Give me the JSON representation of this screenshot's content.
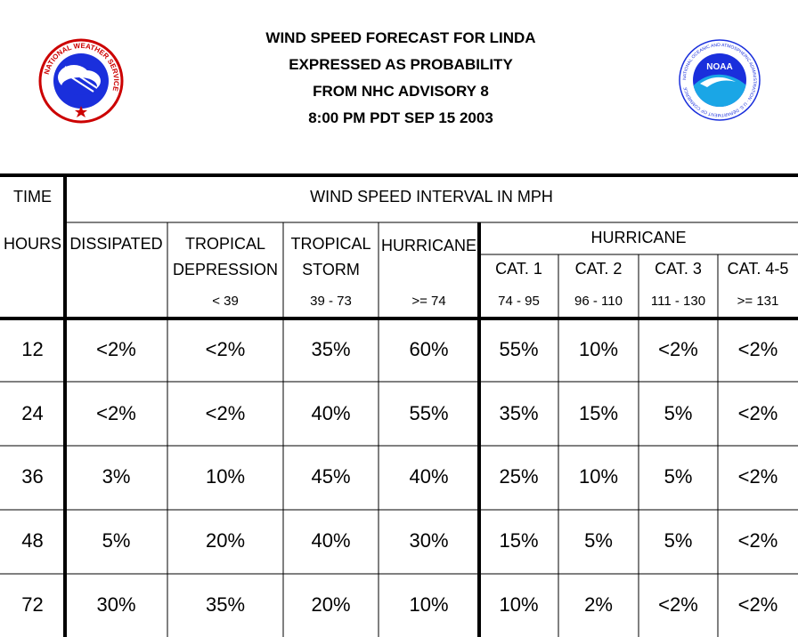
{
  "title_lines": [
    "WIND SPEED FORECAST FOR LINDA",
    "EXPRESSED AS PROBABILITY",
    "FROM NHC ADVISORY   8",
    "8:00 PM PDT SEP 15 2003"
  ],
  "logos": {
    "nws_text": "NATIONAL WEATHER SERVICE",
    "noaa_text": "NOAA",
    "noaa_ring_text": "NATIONAL OCEANIC AND ATMOSPHERIC ADMINISTRATION · U.S. DEPARTMENT OF COMMERCE"
  },
  "table": {
    "time_label": "TIME",
    "interval_label": "WIND SPEED INTERVAL IN MPH",
    "hours_label": "HOURS",
    "dissipated_label": "DISSIPATED",
    "td_label_1": "TROPICAL",
    "td_label_2": "DEPRESSION",
    "td_range": "< 39",
    "ts_label_1": "TROPICAL",
    "ts_label_2": "STORM",
    "ts_range": "39 - 73",
    "hurr_label": "HURRICANE",
    "hurr_range": ">= 74",
    "hurr_group_label": "HURRICANE",
    "cat1_label": "CAT. 1",
    "cat1_range": "74 - 95",
    "cat2_label": "CAT. 2",
    "cat2_range": "96 - 110",
    "cat3_label": "CAT. 3",
    "cat3_range": "111 - 130",
    "cat45_label": "CAT. 4-5",
    "cat45_range": ">= 131",
    "rows": [
      {
        "hours": "12",
        "values": [
          "<2%",
          "<2%",
          "35%",
          "60%",
          "55%",
          "10%",
          "<2%",
          "<2%"
        ]
      },
      {
        "hours": "24",
        "values": [
          "<2%",
          "<2%",
          "40%",
          "55%",
          "35%",
          "15%",
          "5%",
          "<2%"
        ]
      },
      {
        "hours": "36",
        "values": [
          "3%",
          "10%",
          "45%",
          "40%",
          "25%",
          "10%",
          "5%",
          "<2%"
        ]
      },
      {
        "hours": "48",
        "values": [
          "5%",
          "20%",
          "40%",
          "30%",
          "15%",
          "5%",
          "5%",
          "<2%"
        ]
      },
      {
        "hours": "72",
        "values": [
          "30%",
          "35%",
          "20%",
          "10%",
          "10%",
          "2%",
          "<2%",
          "<2%"
        ]
      }
    ]
  }
}
